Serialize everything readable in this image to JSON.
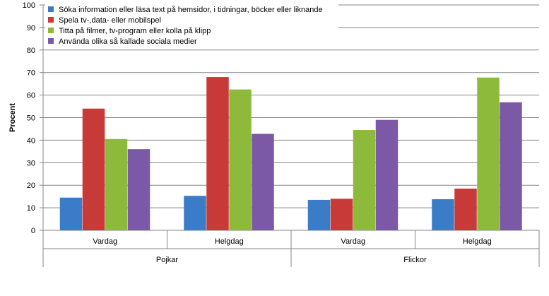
{
  "chart_data": {
    "type": "bar",
    "title": "",
    "xlabel": "",
    "ylabel": "Procent",
    "ylim": [
      0,
      100
    ],
    "yticks": [
      0,
      10,
      20,
      30,
      40,
      50,
      60,
      70,
      80,
      90,
      100
    ],
    "grid": true,
    "legend_position": "top-left",
    "categories": [
      "Vardag",
      "Helgdag",
      "Vardag",
      "Helgdag"
    ],
    "groups": [
      {
        "label": "Pojkar",
        "categories": [
          "Vardag",
          "Helgdag"
        ]
      },
      {
        "label": "Flickor",
        "categories": [
          "Vardag",
          "Helgdag"
        ]
      }
    ],
    "series": [
      {
        "name": "Söka information eller läsa text på hemsidor, i tidningar, böcker eller liknande",
        "color": "#3A7CC8",
        "values": [
          14.5,
          15.3,
          13.5,
          13.8
        ]
      },
      {
        "name": "Spela tv-,data- eller mobilspel",
        "color": "#C83A37",
        "values": [
          54,
          68,
          14,
          18.5
        ]
      },
      {
        "name": "Titta på filmer, tv-program eller kolla på klipp",
        "color": "#8DBA3B",
        "values": [
          40.5,
          62.5,
          44.5,
          67.8
        ]
      },
      {
        "name": "Använda olika så kallade sociala medier",
        "color": "#7B59A6",
        "values": [
          36,
          42.8,
          49,
          56.8
        ]
      }
    ]
  }
}
